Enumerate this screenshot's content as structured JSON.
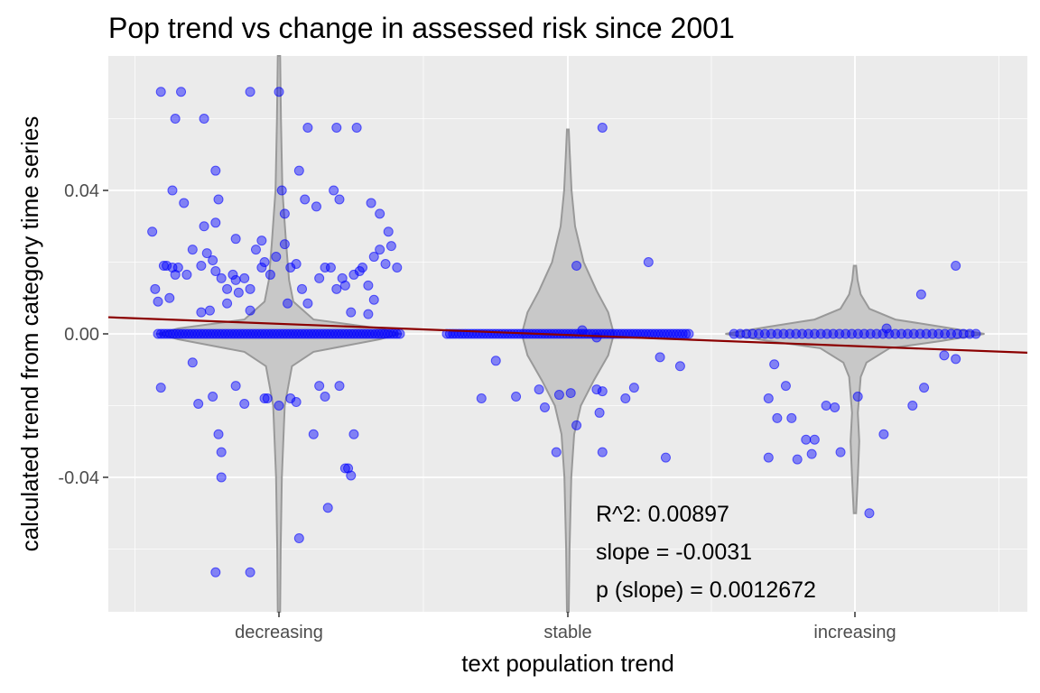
{
  "chart_data": {
    "type": "scatter",
    "title": "Pop trend vs change in assessed risk since 2001",
    "xlabel": "text population trend",
    "ylabel": "calculated trend from category time series",
    "categories": [
      "decreasing",
      "stable",
      "increasing"
    ],
    "ylim": [
      -0.0775,
      0.0775
    ],
    "yticks": [
      -0.04,
      0.0,
      0.04
    ],
    "ytick_labels": [
      "-0.04",
      "0.00",
      "0.04"
    ],
    "grid": true,
    "colors": {
      "panel": "#ebebeb",
      "grid": "#ffffff",
      "points": "#0000ff",
      "violin_fill": "#c8c8c8",
      "violin_stroke": "#999999",
      "trendline": "#8b0000"
    },
    "regression": {
      "intercept": 0.0028,
      "slope": -0.0031
    },
    "annotations": [
      "R^2: 0.00897",
      "slope = -0.0031",
      "p (slope) = 0.0012672"
    ],
    "violins": [
      {
        "category": "decreasing",
        "ymin": -0.0775,
        "ymax": 0.0775,
        "profile": [
          [
            -0.0775,
            0.004
          ],
          [
            -0.06,
            0.006
          ],
          [
            -0.04,
            0.01
          ],
          [
            -0.02,
            0.02
          ],
          [
            -0.009,
            0.045
          ],
          [
            -0.005,
            0.12
          ],
          [
            -0.0015,
            0.35
          ],
          [
            0,
            0.42
          ],
          [
            0.0015,
            0.35
          ],
          [
            0.004,
            0.12
          ],
          [
            0.009,
            0.05
          ],
          [
            0.015,
            0.035
          ],
          [
            0.025,
            0.025
          ],
          [
            0.04,
            0.012
          ],
          [
            0.06,
            0.007
          ],
          [
            0.0775,
            0.004
          ]
        ]
      },
      {
        "category": "stable",
        "ymin": -0.0775,
        "ymax": 0.057,
        "profile": [
          [
            -0.0775,
            0.003
          ],
          [
            -0.06,
            0.006
          ],
          [
            -0.04,
            0.012
          ],
          [
            -0.028,
            0.022
          ],
          [
            -0.02,
            0.045
          ],
          [
            -0.013,
            0.09
          ],
          [
            -0.006,
            0.14
          ],
          [
            0,
            0.16
          ],
          [
            0.006,
            0.14
          ],
          [
            0.012,
            0.1
          ],
          [
            0.02,
            0.055
          ],
          [
            0.03,
            0.025
          ],
          [
            0.04,
            0.013
          ],
          [
            0.05,
            0.007
          ],
          [
            0.057,
            0.003
          ]
        ]
      },
      {
        "category": "increasing",
        "ymin": -0.05,
        "ymax": 0.019,
        "profile": [
          [
            -0.05,
            0.004
          ],
          [
            -0.04,
            0.01
          ],
          [
            -0.03,
            0.015
          ],
          [
            -0.022,
            0.01
          ],
          [
            -0.017,
            0.015
          ],
          [
            -0.012,
            0.02
          ],
          [
            -0.008,
            0.04
          ],
          [
            -0.004,
            0.12
          ],
          [
            -0.002,
            0.3
          ],
          [
            0,
            0.45
          ],
          [
            0.002,
            0.3
          ],
          [
            0.004,
            0.14
          ],
          [
            0.007,
            0.05
          ],
          [
            0.011,
            0.02
          ],
          [
            0.015,
            0.009
          ],
          [
            0.019,
            0.004
          ]
        ]
      }
    ],
    "series": [
      {
        "category": "decreasing",
        "points": [
          [
            -0.41,
            0.0675
          ],
          [
            -0.34,
            0.0675
          ],
          [
            -0.1,
            0.0675
          ],
          [
            0.0,
            0.0675
          ],
          [
            -0.36,
            0.06
          ],
          [
            -0.26,
            0.06
          ],
          [
            0.1,
            0.0575
          ],
          [
            0.2,
            0.0575
          ],
          [
            0.27,
            0.0575
          ],
          [
            -0.22,
            0.0455
          ],
          [
            0.07,
            0.0455
          ],
          [
            -0.37,
            0.04
          ],
          [
            -0.33,
            0.0365
          ],
          [
            -0.21,
            0.0375
          ],
          [
            0.01,
            0.04
          ],
          [
            0.09,
            0.0375
          ],
          [
            0.13,
            0.0355
          ],
          [
            0.19,
            0.04
          ],
          [
            0.21,
            0.0375
          ],
          [
            -0.44,
            0.0285
          ],
          [
            -0.26,
            0.03
          ],
          [
            -0.22,
            0.031
          ],
          [
            -0.15,
            0.0265
          ],
          [
            -0.06,
            0.026
          ],
          [
            0.02,
            0.0335
          ],
          [
            0.35,
            0.0335
          ],
          [
            0.38,
            0.0285
          ],
          [
            0.32,
            0.0365
          ],
          [
            -0.43,
            0.0125
          ],
          [
            -0.4,
            0.019
          ],
          [
            -0.39,
            0.019
          ],
          [
            -0.37,
            0.0185
          ],
          [
            -0.36,
            0.0165
          ],
          [
            -0.35,
            0.0185
          ],
          [
            -0.32,
            0.0165
          ],
          [
            -0.3,
            0.0235
          ],
          [
            -0.27,
            0.019
          ],
          [
            -0.25,
            0.0225
          ],
          [
            -0.23,
            0.0205
          ],
          [
            -0.22,
            0.0175
          ],
          [
            -0.2,
            0.0155
          ],
          [
            -0.18,
            0.0125
          ],
          [
            -0.16,
            0.0165
          ],
          [
            -0.15,
            0.015
          ],
          [
            -0.14,
            0.0115
          ],
          [
            -0.12,
            0.0155
          ],
          [
            -0.1,
            0.0125
          ],
          [
            -0.08,
            0.0235
          ],
          [
            -0.06,
            0.0185
          ],
          [
            -0.05,
            0.02
          ],
          [
            -0.03,
            0.0165
          ],
          [
            -0.01,
            0.0215
          ],
          [
            0.02,
            0.025
          ],
          [
            0.04,
            0.0185
          ],
          [
            0.06,
            0.0195
          ],
          [
            0.08,
            0.0125
          ],
          [
            0.1,
            0.0085
          ],
          [
            0.14,
            0.0155
          ],
          [
            0.16,
            0.0185
          ],
          [
            0.18,
            0.0185
          ],
          [
            0.2,
            0.0125
          ],
          [
            0.22,
            0.0155
          ],
          [
            0.23,
            0.0135
          ],
          [
            0.26,
            0.0165
          ],
          [
            0.28,
            0.0175
          ],
          [
            0.29,
            0.0185
          ],
          [
            0.31,
            0.0135
          ],
          [
            0.33,
            0.0215
          ],
          [
            0.35,
            0.0235
          ],
          [
            0.37,
            0.0195
          ],
          [
            0.39,
            0.0245
          ],
          [
            0.41,
            0.0185
          ],
          [
            -0.42,
            0.009
          ],
          [
            -0.38,
            0.01
          ],
          [
            -0.27,
            0.006
          ],
          [
            -0.24,
            0.0065
          ],
          [
            -0.18,
            0.0085
          ],
          [
            -0.1,
            0.0065
          ],
          [
            0.03,
            0.0085
          ],
          [
            0.25,
            0.006
          ],
          [
            0.33,
            0.0095
          ],
          [
            0.31,
            0.0055
          ],
          [
            -0.41,
            -0.015
          ],
          [
            -0.3,
            -0.008
          ],
          [
            -0.28,
            -0.0195
          ],
          [
            -0.23,
            -0.0175
          ],
          [
            -0.21,
            -0.028
          ],
          [
            -0.2,
            -0.033
          ],
          [
            -0.2,
            -0.04
          ],
          [
            -0.15,
            -0.0145
          ],
          [
            -0.12,
            -0.0195
          ],
          [
            -0.05,
            -0.018
          ],
          [
            -0.04,
            -0.018
          ],
          [
            0.0,
            -0.02
          ],
          [
            0.04,
            -0.018
          ],
          [
            0.06,
            -0.019
          ],
          [
            0.12,
            -0.028
          ],
          [
            0.14,
            -0.0145
          ],
          [
            0.16,
            -0.0175
          ],
          [
            0.21,
            -0.0145
          ],
          [
            0.23,
            -0.0375
          ],
          [
            0.24,
            -0.0375
          ],
          [
            0.25,
            -0.0395
          ],
          [
            0.26,
            -0.028
          ],
          [
            0.17,
            -0.0485
          ],
          [
            0.07,
            -0.057
          ],
          [
            -0.1,
            -0.0665
          ],
          [
            -0.22,
            -0.0665
          ]
        ]
      },
      {
        "category": "stable",
        "points": [
          [
            0.12,
            0.0575
          ],
          [
            0.03,
            0.019
          ],
          [
            0.28,
            0.02
          ],
          [
            -0.25,
            -0.0075
          ],
          [
            -0.18,
            -0.0175
          ],
          [
            -0.3,
            -0.018
          ],
          [
            -0.03,
            -0.017
          ],
          [
            0.01,
            -0.0165
          ],
          [
            0.1,
            -0.0155
          ],
          [
            0.12,
            -0.016
          ],
          [
            0.11,
            -0.022
          ],
          [
            0.03,
            -0.0255
          ],
          [
            -0.1,
            -0.0155
          ],
          [
            -0.08,
            -0.0205
          ],
          [
            0.2,
            -0.018
          ],
          [
            0.23,
            -0.015
          ],
          [
            0.32,
            -0.0065
          ],
          [
            0.39,
            -0.009
          ],
          [
            -0.04,
            -0.033
          ],
          [
            0.12,
            -0.033
          ],
          [
            0.34,
            -0.0345
          ],
          [
            0.05,
            0.001
          ],
          [
            0.1,
            -0.001
          ]
        ]
      },
      {
        "category": "increasing",
        "points": [
          [
            0.35,
            0.019
          ],
          [
            0.23,
            0.011
          ],
          [
            0.11,
            0.0015
          ],
          [
            -0.3,
            -0.018
          ],
          [
            -0.27,
            -0.0235
          ],
          [
            -0.24,
            -0.0145
          ],
          [
            -0.3,
            -0.0345
          ],
          [
            -0.2,
            -0.035
          ],
          [
            -0.22,
            -0.0235
          ],
          [
            -0.28,
            -0.0085
          ],
          [
            -0.17,
            -0.0295
          ],
          [
            -0.15,
            -0.0335
          ],
          [
            -0.14,
            -0.0295
          ],
          [
            -0.1,
            -0.02
          ],
          [
            -0.07,
            -0.0205
          ],
          [
            -0.05,
            -0.033
          ],
          [
            0.05,
            -0.05
          ],
          [
            0.2,
            -0.02
          ],
          [
            0.24,
            -0.015
          ],
          [
            0.31,
            -0.006
          ],
          [
            0.35,
            -0.007
          ],
          [
            0.01,
            -0.0175
          ],
          [
            0.1,
            -0.028
          ]
        ]
      }
    ],
    "baseline_points": [
      {
        "category": "decreasing",
        "y": 0.0,
        "x_from": -0.42,
        "x_to": 0.42,
        "count": 80
      },
      {
        "category": "stable",
        "y": 0.0,
        "x_from": -0.42,
        "x_to": 0.42,
        "count": 80
      },
      {
        "category": "increasing",
        "y": 0.0,
        "x_from": -0.42,
        "x_to": 0.42,
        "count": 40
      }
    ]
  }
}
